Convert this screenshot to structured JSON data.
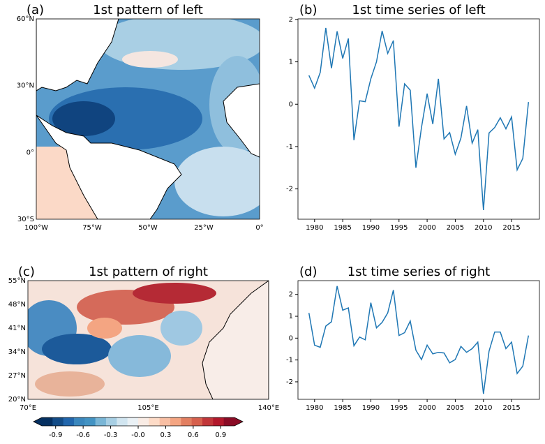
{
  "chart_data": [
    {
      "type": "map",
      "label": "(a)",
      "title": "1st pattern of left",
      "xlim": [
        -100,
        0
      ],
      "ylim": [
        -30,
        60
      ],
      "xticks": [
        {
          "value": -100,
          "label": "100°W"
        },
        {
          "value": -75,
          "label": "75°W"
        },
        {
          "value": -50,
          "label": "50°W"
        },
        {
          "value": -25,
          "label": "25°W"
        },
        {
          "value": 0,
          "label": "0°"
        }
      ],
      "yticks": [
        {
          "value": -30,
          "label": "30°S"
        },
        {
          "value": 0,
          "label": "0°"
        },
        {
          "value": 30,
          "label": "30°N"
        },
        {
          "value": 60,
          "label": "60°N"
        }
      ]
    },
    {
      "type": "line",
      "label": "(b)",
      "title": "1st time series of left",
      "color": "#1f77b4",
      "x": [
        1979,
        1980,
        1981,
        1982,
        1983,
        1984,
        1985,
        1986,
        1987,
        1988,
        1989,
        1990,
        1991,
        1992,
        1993,
        1994,
        1995,
        1996,
        1997,
        1998,
        1999,
        2000,
        2001,
        2002,
        2003,
        2004,
        2005,
        2006,
        2007,
        2008,
        2009,
        2010,
        2011,
        2012,
        2013,
        2014,
        2015,
        2016,
        2017,
        2018
      ],
      "values": [
        0.68,
        0.38,
        0.75,
        1.8,
        0.85,
        1.72,
        1.08,
        1.55,
        -0.85,
        0.08,
        0.06,
        0.6,
        1.0,
        1.73,
        1.2,
        1.5,
        -0.53,
        0.48,
        0.33,
        -1.5,
        -0.55,
        0.25,
        -0.47,
        0.6,
        -0.82,
        -0.67,
        -1.18,
        -0.8,
        -0.04,
        -0.92,
        -0.6,
        -2.5,
        -0.68,
        -0.55,
        -0.32,
        -0.58,
        -0.3,
        -1.55,
        -1.28,
        0.05
      ],
      "xlim": [
        1977.05,
        2019.95
      ],
      "ylim": [
        -2.715,
        2.015
      ],
      "xticks": [
        1980,
        1985,
        1990,
        1995,
        2000,
        2005,
        2010,
        2015
      ],
      "yticks": [
        -2,
        -1,
        0,
        1,
        2
      ]
    },
    {
      "type": "map",
      "label": "(c)",
      "title": "1st pattern of right",
      "xlim": [
        70,
        140
      ],
      "ylim": [
        20,
        55
      ],
      "xticks": [
        {
          "value": 70,
          "label": "70°E"
        },
        {
          "value": 105,
          "label": "105°E"
        },
        {
          "value": 140,
          "label": "140°E"
        }
      ],
      "yticks": [
        {
          "value": 20,
          "label": "20°N"
        },
        {
          "value": 27,
          "label": "27°N"
        },
        {
          "value": 34,
          "label": "34°N"
        },
        {
          "value": 41,
          "label": "41°N"
        },
        {
          "value": 48,
          "label": "48°N"
        },
        {
          "value": 55,
          "label": "55°N"
        }
      ],
      "colorbar": {
        "lim": [
          -1.05,
          1.05
        ],
        "colors": [
          "#053061",
          "#134c87",
          "#2166ac",
          "#3a87bd",
          "#4393c3",
          "#7ab6d6",
          "#a7cfe4",
          "#d1e5f0",
          "#eaf1f5",
          "#f9ece5",
          "#fddbc7",
          "#f8bfa4",
          "#f4a582",
          "#e27f61",
          "#d6604d",
          "#c13639",
          "#b2182b",
          "#8a0b25"
        ],
        "ticks": [
          -0.9,
          -0.6,
          -0.3,
          {
            "value": 0,
            "label": "-0.0"
          },
          0.3,
          0.6,
          0.9
        ]
      }
    },
    {
      "type": "line",
      "label": "(d)",
      "title": "1st time series of right",
      "color": "#1f77b4",
      "x": [
        1979,
        1980,
        1981,
        1982,
        1983,
        1984,
        1985,
        1986,
        1987,
        1988,
        1989,
        1990,
        1991,
        1992,
        1993,
        1994,
        1995,
        1996,
        1997,
        1998,
        1999,
        2000,
        2001,
        2002,
        2003,
        2004,
        2005,
        2006,
        2007,
        2008,
        2009,
        2010,
        2011,
        2012,
        2013,
        2014,
        2015,
        2016,
        2017,
        2018
      ],
      "values": [
        1.15,
        -0.32,
        -0.42,
        0.55,
        0.75,
        2.38,
        1.28,
        1.38,
        -0.35,
        0.05,
        -0.08,
        1.62,
        0.47,
        0.72,
        1.15,
        2.2,
        0.12,
        0.25,
        0.78,
        -0.55,
        -0.98,
        -0.32,
        -0.72,
        -0.65,
        -0.68,
        -1.13,
        -0.98,
        -0.38,
        -0.65,
        -0.48,
        -0.18,
        -2.55,
        -0.6,
        0.28,
        0.28,
        -0.48,
        -0.18,
        -1.62,
        -1.28,
        0.12
      ],
      "xlim": [
        1977.05,
        2019.95
      ],
      "ylim": [
        -2.8,
        2.63
      ],
      "xticks": [
        1980,
        1985,
        1990,
        1995,
        2000,
        2005,
        2010,
        2015
      ],
      "yticks": [
        -2,
        -1,
        0,
        1,
        2
      ]
    }
  ]
}
